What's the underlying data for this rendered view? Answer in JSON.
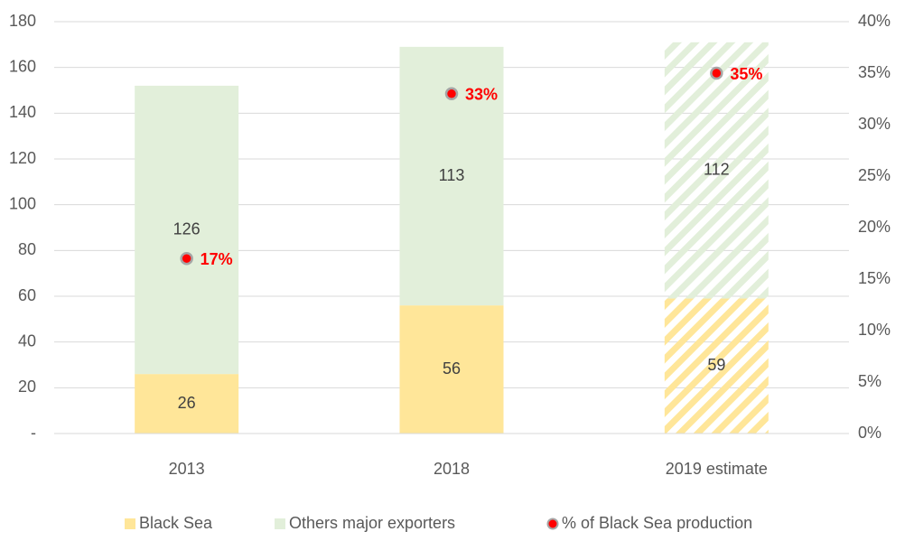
{
  "chart_data": {
    "type": "stacked_bar",
    "categories": [
      "2013",
      "2018",
      "2019 estimate"
    ],
    "series": [
      {
        "name": "Black Sea",
        "color": "#ffe699",
        "values": [
          26,
          56,
          59
        ]
      },
      {
        "name": "Others major exporters",
        "color": "#e2efda",
        "values": [
          126,
          113,
          112
        ]
      },
      {
        "name": "% of Black Sea production",
        "color": "#ff0000",
        "axis": "y2",
        "values": [
          17,
          33,
          35
        ],
        "value_labels": [
          "17%",
          "33%",
          "35%"
        ]
      }
    ],
    "hatch": [
      false,
      false,
      true
    ],
    "ylim": [
      0,
      180
    ],
    "yticks": [
      {
        "value": 0,
        "label": "-"
      },
      20,
      40,
      60,
      80,
      100,
      120,
      140,
      160,
      180
    ],
    "y2lim": [
      0,
      40
    ],
    "y2ticks": [
      {
        "value": 0,
        "label": "0%"
      },
      {
        "value": 5,
        "label": "5%"
      },
      {
        "value": 10,
        "label": "10%"
      },
      {
        "value": 15,
        "label": "15%"
      },
      {
        "value": 20,
        "label": "20%"
      },
      {
        "value": 25,
        "label": "25%"
      },
      {
        "value": 30,
        "label": "30%"
      },
      {
        "value": 35,
        "label": "35%"
      },
      {
        "value": 40,
        "label": "40%"
      }
    ],
    "grid": true,
    "legend": "bottom"
  }
}
